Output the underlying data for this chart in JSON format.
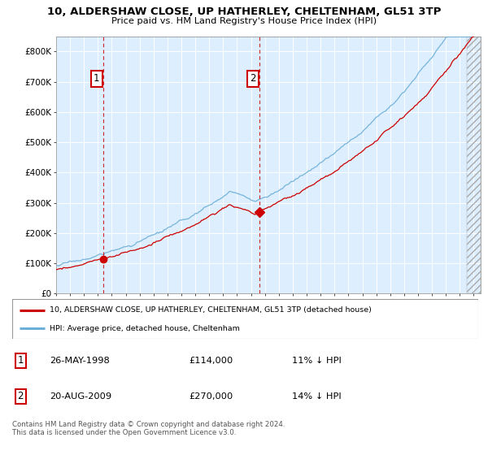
{
  "title": "10, ALDERSHAW CLOSE, UP HATHERLEY, CHELTENHAM, GL51 3TP",
  "subtitle": "Price paid vs. HM Land Registry's House Price Index (HPI)",
  "legend_line1": "10, ALDERSHAW CLOSE, UP HATHERLEY, CHELTENHAM, GL51 3TP (detached house)",
  "legend_line2": "HPI: Average price, detached house, Cheltenham",
  "transaction1_date": "26-MAY-1998",
  "transaction1_price": "£114,000",
  "transaction1_hpi": "11% ↓ HPI",
  "transaction1_year": 1998.4,
  "transaction2_date": "20-AUG-2009",
  "transaction2_price": "£270,000",
  "transaction2_hpi": "14% ↓ HPI",
  "transaction2_year": 2009.63,
  "transaction1_value": 114000,
  "transaction2_value": 270000,
  "footer": "Contains HM Land Registry data © Crown copyright and database right 2024.\nThis data is licensed under the Open Government Licence v3.0.",
  "hpi_color": "#6baed6",
  "price_color": "#cc0000",
  "vline_color": "#cc0000",
  "bg_color": "#ddeeff",
  "ylim": [
    0,
    850000
  ],
  "yticks": [
    0,
    100000,
    200000,
    300000,
    400000,
    500000,
    600000,
    700000,
    800000
  ],
  "ytick_labels": [
    "£0",
    "£100K",
    "£200K",
    "£300K",
    "£400K",
    "£500K",
    "£600K",
    "£700K",
    "£800K"
  ],
  "xlim_start": 1995.0,
  "xlim_end": 2025.5
}
